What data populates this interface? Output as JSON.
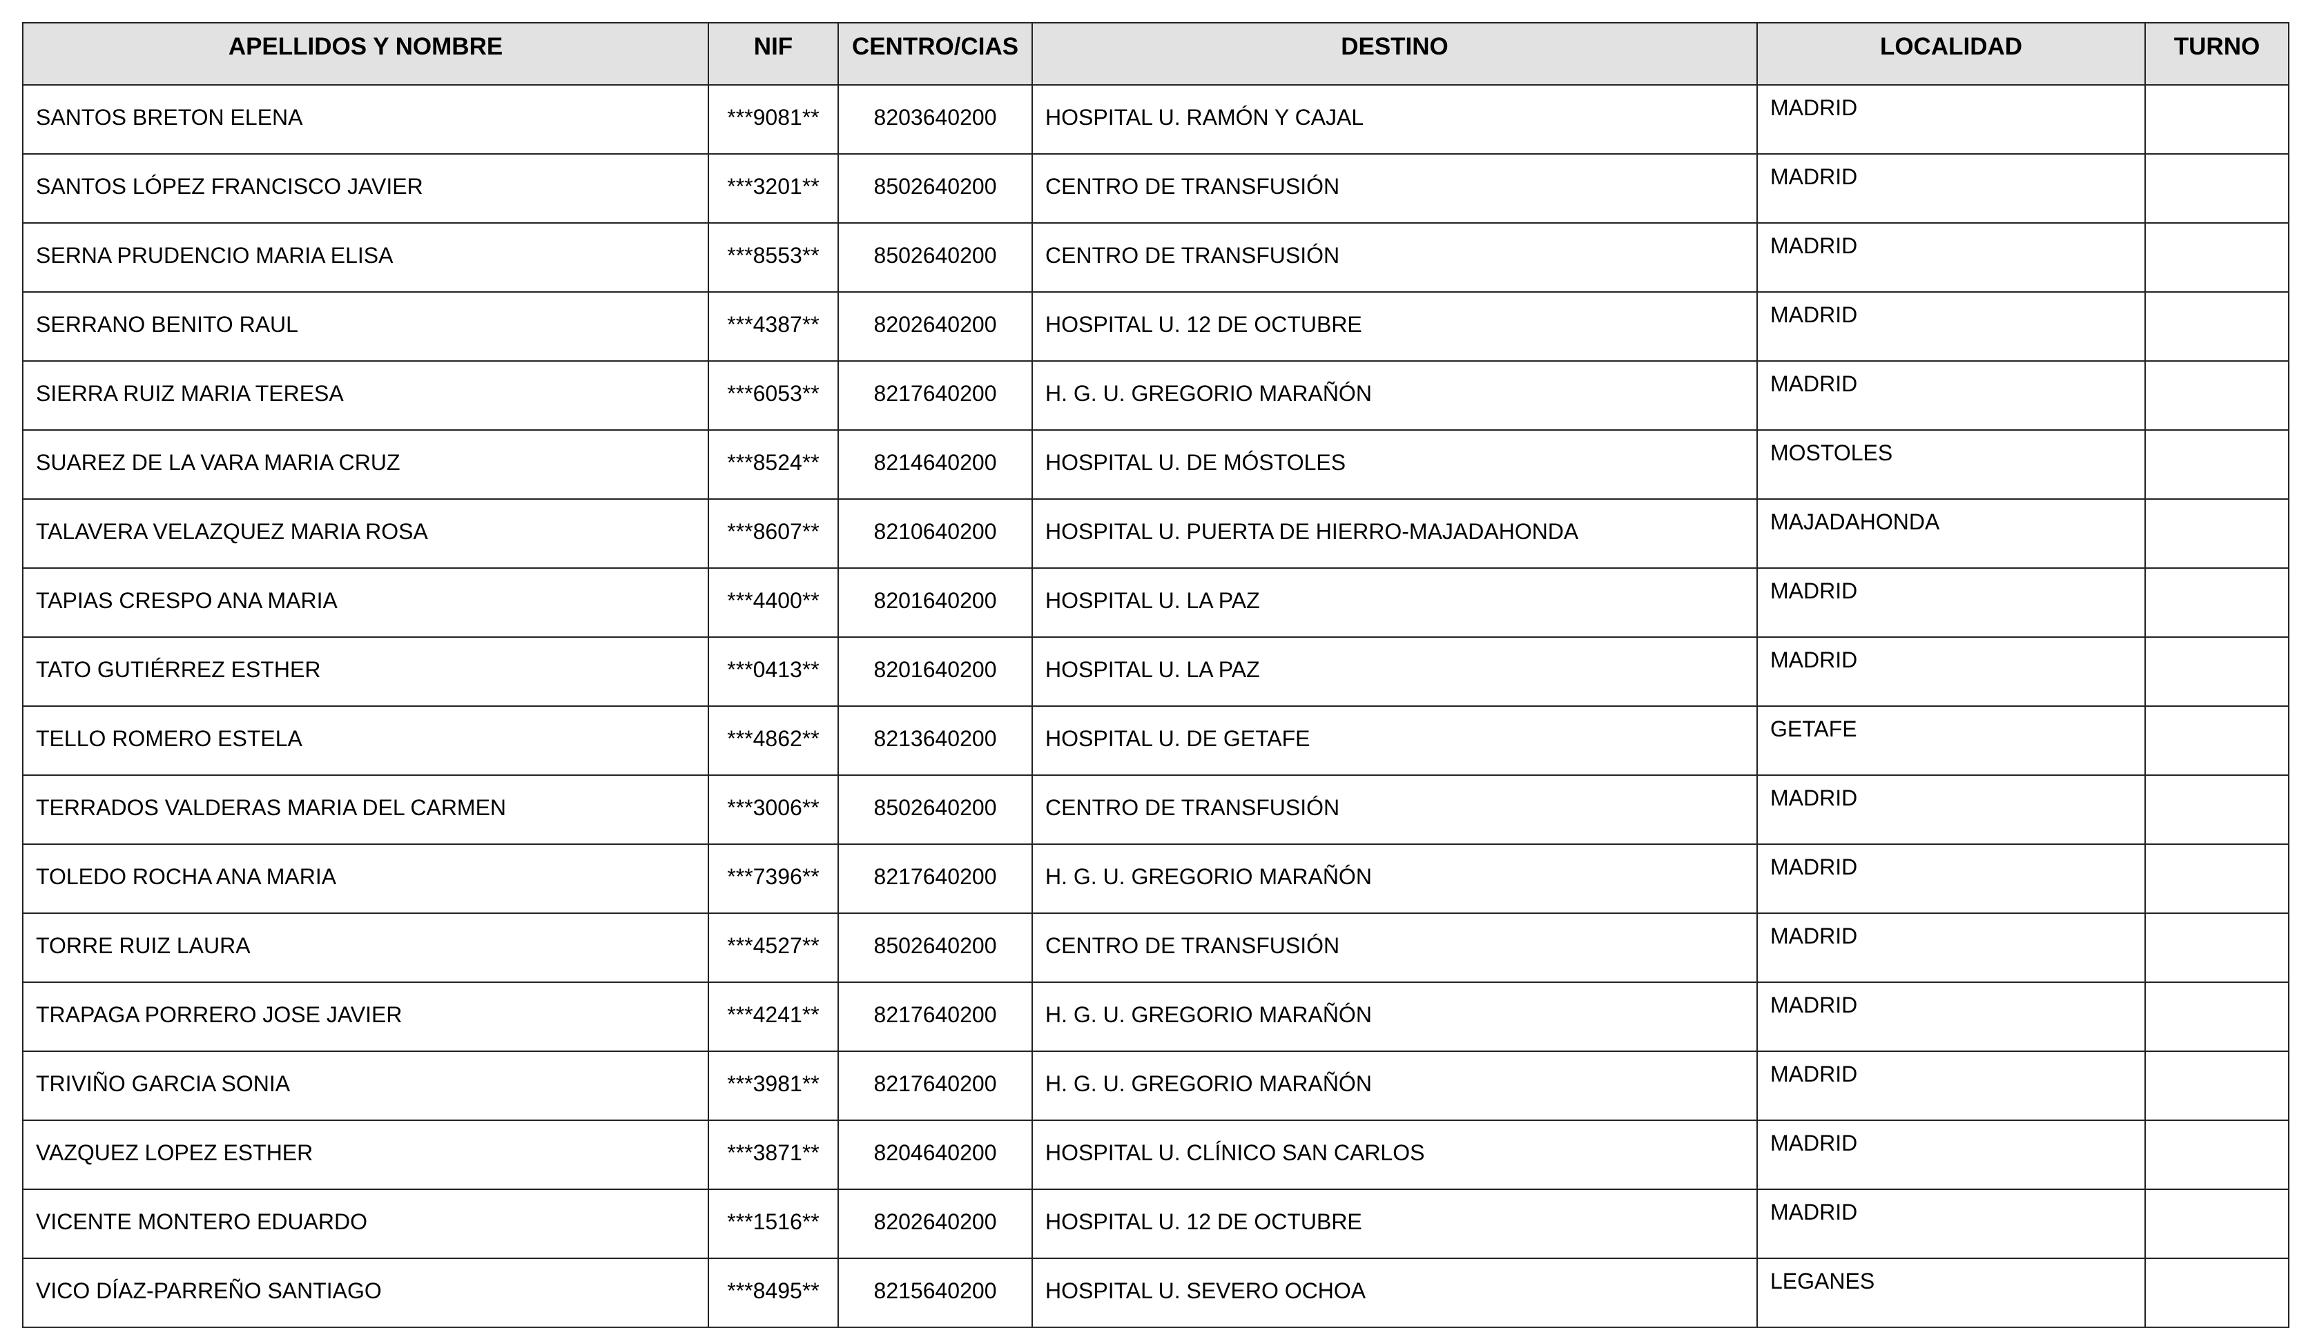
{
  "table": {
    "headers": [
      "APELLIDOS Y NOMBRE",
      "NIF",
      "CENTRO/CIAS",
      "DESTINO",
      "LOCALIDAD",
      "TURNO"
    ],
    "rows": [
      [
        "SANTOS BRETON ELENA",
        "***9081**",
        "8203640200",
        "HOSPITAL U. RAMÓN Y CAJAL",
        "MADRID",
        ""
      ],
      [
        "SANTOS LÓPEZ FRANCISCO JAVIER",
        "***3201**",
        "8502640200",
        "CENTRO DE TRANSFUSIÓN",
        "MADRID",
        ""
      ],
      [
        "SERNA PRUDENCIO MARIA ELISA",
        "***8553**",
        "8502640200",
        "CENTRO DE TRANSFUSIÓN",
        "MADRID",
        ""
      ],
      [
        "SERRANO BENITO RAUL",
        "***4387**",
        "8202640200",
        "HOSPITAL U. 12 DE OCTUBRE",
        "MADRID",
        ""
      ],
      [
        "SIERRA RUIZ MARIA TERESA",
        "***6053**",
        "8217640200",
        "H. G. U. GREGORIO MARAÑÓN",
        "MADRID",
        ""
      ],
      [
        "SUAREZ DE LA VARA MARIA CRUZ",
        "***8524**",
        "8214640200",
        "HOSPITAL U. DE MÓSTOLES",
        "MOSTOLES",
        ""
      ],
      [
        "TALAVERA VELAZQUEZ MARIA ROSA",
        "***8607**",
        "8210640200",
        "HOSPITAL U. PUERTA DE HIERRO-MAJADAHONDA",
        "MAJADAHONDA",
        ""
      ],
      [
        "TAPIAS CRESPO ANA MARIA",
        "***4400**",
        "8201640200",
        "HOSPITAL U. LA PAZ",
        "MADRID",
        ""
      ],
      [
        "TATO GUTIÉRREZ ESTHER",
        "***0413**",
        "8201640200",
        "HOSPITAL U. LA PAZ",
        "MADRID",
        ""
      ],
      [
        "TELLO ROMERO ESTELA",
        "***4862**",
        "8213640200",
        "HOSPITAL U. DE GETAFE",
        "GETAFE",
        ""
      ],
      [
        "TERRADOS VALDERAS MARIA DEL CARMEN",
        "***3006**",
        "8502640200",
        "CENTRO DE TRANSFUSIÓN",
        "MADRID",
        ""
      ],
      [
        "TOLEDO ROCHA ANA MARIA",
        "***7396**",
        "8217640200",
        "H. G. U. GREGORIO MARAÑÓN",
        "MADRID",
        ""
      ],
      [
        "TORRE RUIZ LAURA",
        "***4527**",
        "8502640200",
        "CENTRO DE TRANSFUSIÓN",
        "MADRID",
        ""
      ],
      [
        "TRAPAGA PORRERO JOSE JAVIER",
        "***4241**",
        "8217640200",
        "H. G. U. GREGORIO MARAÑÓN",
        "MADRID",
        ""
      ],
      [
        "TRIVIÑO GARCIA SONIA",
        "***3981**",
        "8217640200",
        "H. G. U. GREGORIO MARAÑÓN",
        "MADRID",
        ""
      ],
      [
        "VAZQUEZ LOPEZ ESTHER",
        "***3871**",
        "8204640200",
        "HOSPITAL U. CLÍNICO SAN CARLOS",
        "MADRID",
        ""
      ],
      [
        "VICENTE MONTERO EDUARDO",
        "***1516**",
        "8202640200",
        "HOSPITAL U. 12 DE OCTUBRE",
        "MADRID",
        ""
      ],
      [
        "VICO DÍAZ-PARREÑO SANTIAGO",
        "***8495**",
        "8215640200",
        "HOSPITAL U. SEVERO OCHOA",
        "LEGANES",
        ""
      ]
    ]
  }
}
